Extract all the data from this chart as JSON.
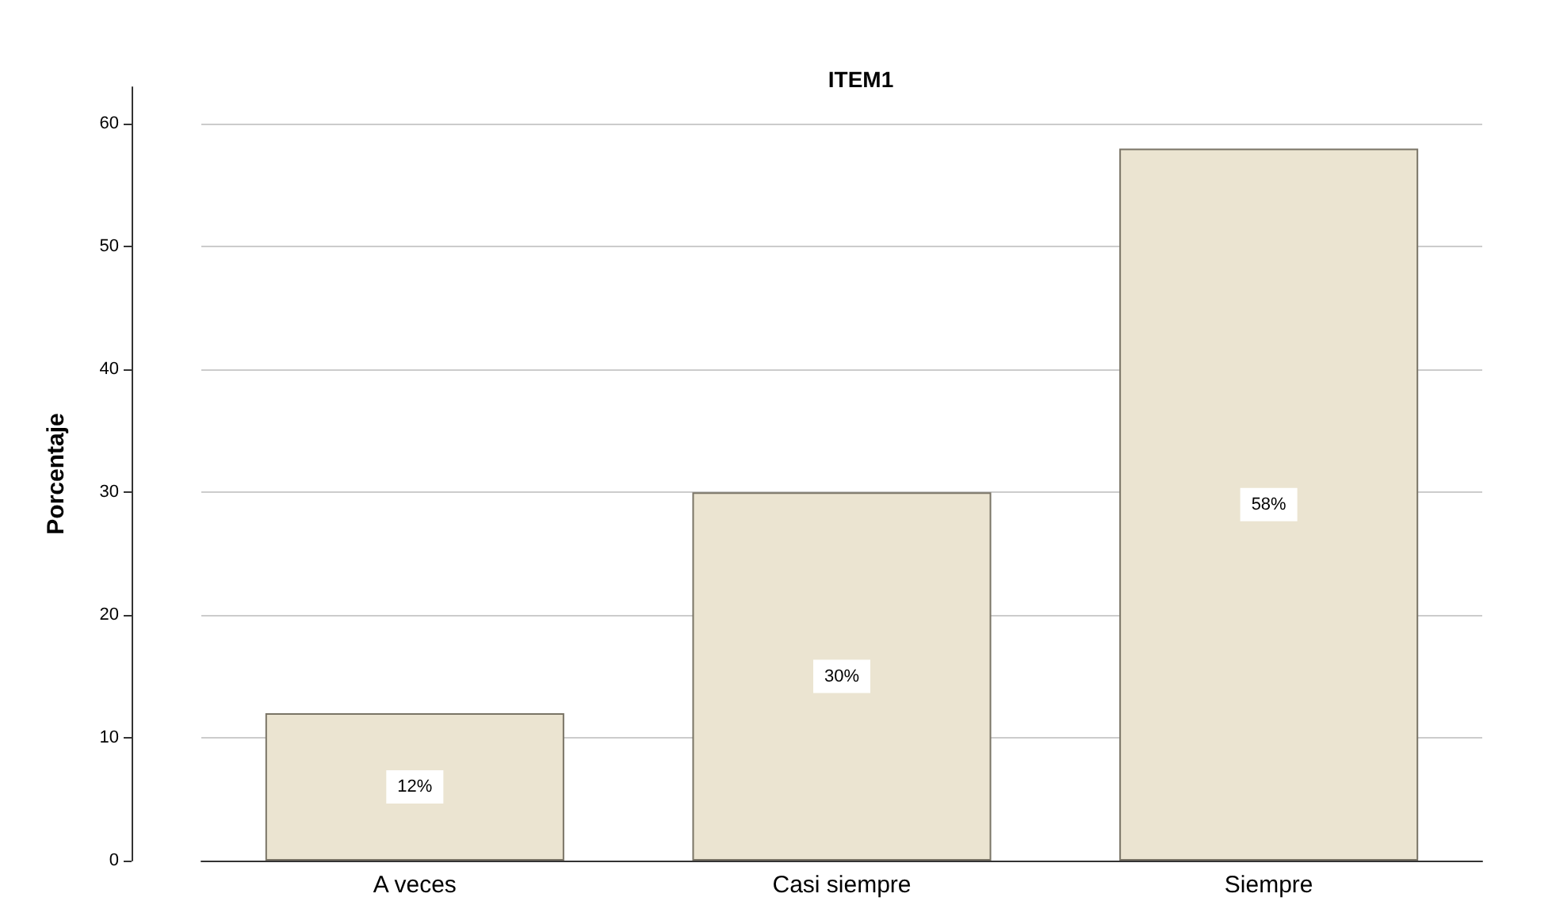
{
  "chart_data": {
    "type": "bar",
    "title": "ITEM1",
    "ylabel": "Porcentaje",
    "categories": [
      "A veces",
      "Casi siempre",
      "Siempre"
    ],
    "values": [
      12,
      30,
      58
    ],
    "value_labels": [
      "12%",
      "30%",
      "58%"
    ],
    "color": "#ebe4d1",
    "ylim": [
      0,
      63
    ],
    "yticks": [
      0,
      10,
      20,
      30,
      40,
      50,
      60
    ],
    "grid": "y"
  }
}
